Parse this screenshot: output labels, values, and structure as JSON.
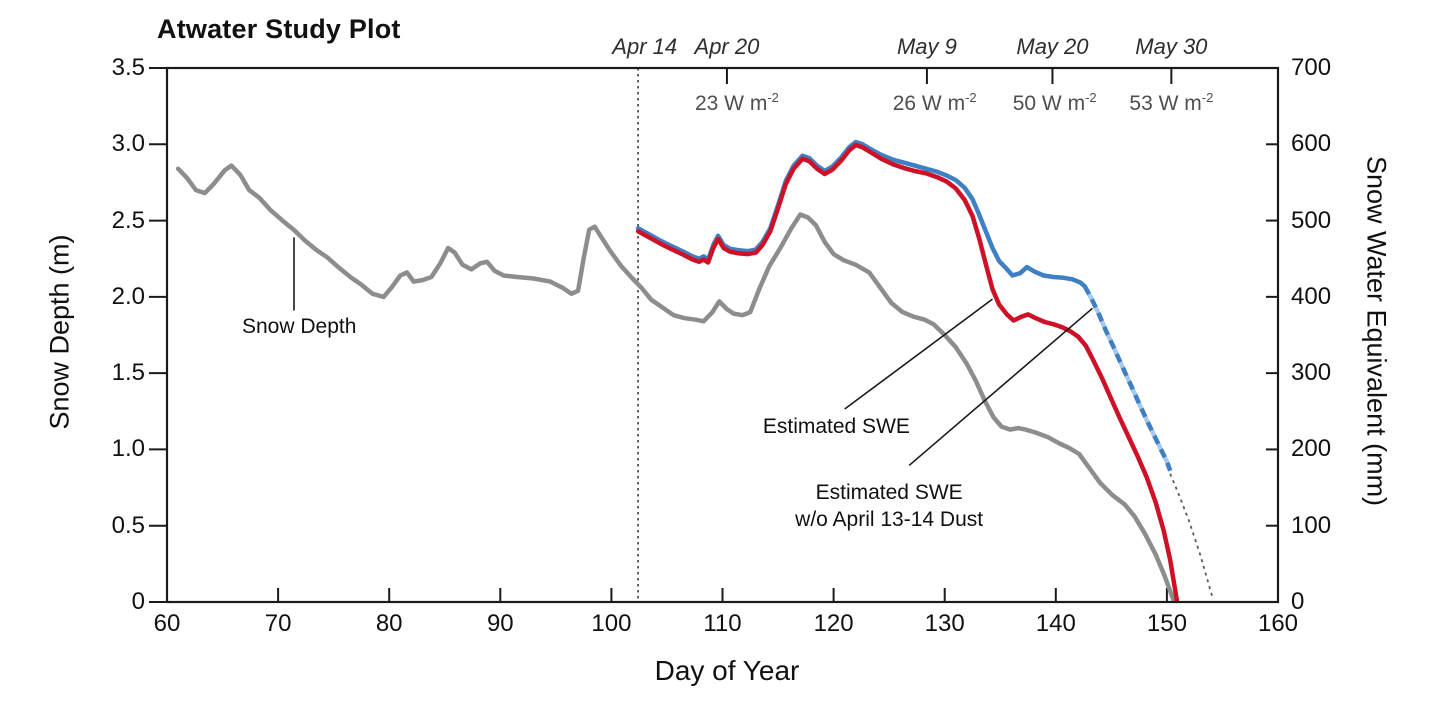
{
  "title": "Atwater Study Plot",
  "colors": {
    "snow_depth": "#8d8d8d",
    "swe": "#ce1126",
    "swe_no_dust": "#3f80c4",
    "swe_no_dust_light": "#a9c9e8",
    "axis": "#1a1a1a",
    "dotted_line": "#3a3a3a",
    "w_label": "#4f4f4f"
  },
  "axes": {
    "x": {
      "label": "Day of Year",
      "min": 60,
      "max": 160,
      "ticks": [
        60,
        70,
        80,
        90,
        100,
        110,
        120,
        130,
        140,
        150,
        160
      ]
    },
    "y_left": {
      "label": "Snow Depth (m)",
      "min": 0,
      "max": 3.5,
      "ticks": [
        {
          "v": 0,
          "t": "0"
        },
        {
          "v": 0.5,
          "t": "0.5"
        },
        {
          "v": 1.0,
          "t": "1.0"
        },
        {
          "v": 1.5,
          "t": "1.5"
        },
        {
          "v": 2.0,
          "t": "2.0"
        },
        {
          "v": 2.5,
          "t": "2.5"
        },
        {
          "v": 3.0,
          "t": "3.0"
        },
        {
          "v": 3.5,
          "t": "3.5"
        }
      ]
    },
    "y_right": {
      "label": "Snow Water Equivalent (mm)",
      "min": 0,
      "max": 700,
      "ticks": [
        0,
        100,
        200,
        300,
        400,
        500,
        600,
        700
      ]
    }
  },
  "top_annotations": {
    "dates": [
      {
        "label": "Apr 14",
        "day": 103.0,
        "tick": false
      },
      {
        "label": "Apr 20",
        "day": 110.4,
        "tick": true
      },
      {
        "label": "May 9",
        "day": 128.4,
        "tick": true
      },
      {
        "label": "May 20",
        "day": 139.7,
        "tick": true
      },
      {
        "label": "May 30",
        "day": 150.4,
        "tick": true
      }
    ],
    "radiative_forcing": [
      {
        "value": "23",
        "unit": "W m",
        "exp": "-2",
        "day": 111.3
      },
      {
        "value": "26",
        "unit": "W m",
        "exp": "-2",
        "day": 129.1
      },
      {
        "value": "50",
        "unit": "W m",
        "exp": "-2",
        "day": 139.9
      },
      {
        "value": "53",
        "unit": "W m",
        "exp": "-2",
        "day": 150.4
      }
    ]
  },
  "chart_data": {
    "type": "line",
    "title": "Atwater Study Plot",
    "xlabel": "Day of Year",
    "ylabel_left": "Snow Depth (m)",
    "ylabel_right": "Snow Water Equivalent (mm)",
    "xlim": [
      60,
      160
    ],
    "ylim_left": [
      0,
      3.5
    ],
    "ylim_right": [
      0,
      700
    ],
    "grid": false,
    "legend": "inline-annotations",
    "dust_event_line_day": 102.4,
    "series": [
      {
        "name": "Snow Depth",
        "axis": "left",
        "units": "m",
        "color": "#8d8d8d",
        "style": "solid",
        "points": [
          [
            61,
            2.84
          ],
          [
            61.8,
            2.78
          ],
          [
            62.6,
            2.7
          ],
          [
            63.4,
            2.68
          ],
          [
            64.2,
            2.74
          ],
          [
            65.2,
            2.83
          ],
          [
            65.8,
            2.86
          ],
          [
            66.6,
            2.8
          ],
          [
            67.4,
            2.7
          ],
          [
            68.3,
            2.65
          ],
          [
            69.3,
            2.57
          ],
          [
            70.4,
            2.5
          ],
          [
            71.4,
            2.44
          ],
          [
            72.4,
            2.37
          ],
          [
            73.4,
            2.31
          ],
          [
            74.4,
            2.26
          ],
          [
            75.5,
            2.19
          ],
          [
            76.5,
            2.13
          ],
          [
            77.5,
            2.08
          ],
          [
            78.5,
            2.02
          ],
          [
            79.5,
            2.0
          ],
          [
            80.2,
            2.06
          ],
          [
            81,
            2.14
          ],
          [
            81.6,
            2.16
          ],
          [
            82.2,
            2.1
          ],
          [
            83,
            2.11
          ],
          [
            83.8,
            2.13
          ],
          [
            84.6,
            2.22
          ],
          [
            85.3,
            2.32
          ],
          [
            85.9,
            2.29
          ],
          [
            86.6,
            2.21
          ],
          [
            87.4,
            2.18
          ],
          [
            88.2,
            2.22
          ],
          [
            88.8,
            2.23
          ],
          [
            89.5,
            2.17
          ],
          [
            90.3,
            2.14
          ],
          [
            91.5,
            2.13
          ],
          [
            93,
            2.12
          ],
          [
            94.5,
            2.1
          ],
          [
            95.6,
            2.06
          ],
          [
            96.4,
            2.02
          ],
          [
            97,
            2.04
          ],
          [
            97.5,
            2.25
          ],
          [
            98,
            2.44
          ],
          [
            98.5,
            2.46
          ],
          [
            99.2,
            2.38
          ],
          [
            99.9,
            2.3
          ],
          [
            100.9,
            2.2
          ],
          [
            101.9,
            2.12
          ],
          [
            102.7,
            2.06
          ],
          [
            103.6,
            1.98
          ],
          [
            104.6,
            1.93
          ],
          [
            105.6,
            1.88
          ],
          [
            106.6,
            1.86
          ],
          [
            107.6,
            1.85
          ],
          [
            108.3,
            1.84
          ],
          [
            109.1,
            1.9
          ],
          [
            109.7,
            1.97
          ],
          [
            110.4,
            1.92
          ],
          [
            111,
            1.89
          ],
          [
            111.8,
            1.88
          ],
          [
            112.5,
            1.9
          ],
          [
            113.3,
            2.05
          ],
          [
            114.2,
            2.2
          ],
          [
            115.2,
            2.32
          ],
          [
            116.2,
            2.45
          ],
          [
            117,
            2.54
          ],
          [
            117.7,
            2.52
          ],
          [
            118.4,
            2.47
          ],
          [
            119.2,
            2.36
          ],
          [
            120,
            2.28
          ],
          [
            120.9,
            2.24
          ],
          [
            122,
            2.21
          ],
          [
            123.2,
            2.16
          ],
          [
            124.2,
            2.06
          ],
          [
            125.2,
            1.96
          ],
          [
            126.2,
            1.9
          ],
          [
            127.2,
            1.87
          ],
          [
            128.2,
            1.85
          ],
          [
            129,
            1.82
          ],
          [
            130,
            1.75
          ],
          [
            131,
            1.67
          ],
          [
            132,
            1.56
          ],
          [
            132.8,
            1.45
          ],
          [
            133.6,
            1.32
          ],
          [
            134.4,
            1.21
          ],
          [
            135.1,
            1.15
          ],
          [
            135.9,
            1.13
          ],
          [
            136.6,
            1.14
          ],
          [
            137.3,
            1.13
          ],
          [
            138.2,
            1.11
          ],
          [
            139.3,
            1.08
          ],
          [
            140.3,
            1.04
          ],
          [
            141.2,
            1.01
          ],
          [
            142.1,
            0.97
          ],
          [
            143,
            0.88
          ],
          [
            144,
            0.78
          ],
          [
            145.1,
            0.7
          ],
          [
            146.2,
            0.64
          ],
          [
            147.1,
            0.56
          ],
          [
            148,
            0.45
          ],
          [
            149,
            0.31
          ],
          [
            149.8,
            0.17
          ],
          [
            150.6,
            0.01
          ]
        ]
      },
      {
        "name": "Estimated SWE w/o April 13-14 Dust",
        "axis": "right",
        "units": "mm",
        "color": "#3f80c4",
        "style": "solid-then-dashed",
        "points": [
          [
            102.4,
            490
          ],
          [
            103.4,
            482
          ],
          [
            104.5,
            473
          ],
          [
            105.5,
            466
          ],
          [
            106.5,
            459
          ],
          [
            107.3,
            453
          ],
          [
            107.9,
            450
          ],
          [
            108.3,
            453
          ],
          [
            108.7,
            449
          ],
          [
            109.2,
            469
          ],
          [
            109.6,
            480
          ],
          [
            110.1,
            468
          ],
          [
            110.7,
            463
          ],
          [
            111.5,
            461
          ],
          [
            112.3,
            460
          ],
          [
            113,
            462
          ],
          [
            113.6,
            472
          ],
          [
            114.3,
            490
          ],
          [
            115,
            520
          ],
          [
            115.7,
            552
          ],
          [
            116.4,
            572
          ],
          [
            117.2,
            585
          ],
          [
            117.8,
            582
          ],
          [
            118.5,
            572
          ],
          [
            119.2,
            565
          ],
          [
            119.9,
            571
          ],
          [
            120.7,
            583
          ],
          [
            121.4,
            596
          ],
          [
            122,
            603
          ],
          [
            122.6,
            600
          ],
          [
            123.4,
            593
          ],
          [
            124.3,
            586
          ],
          [
            125.3,
            580
          ],
          [
            126.3,
            576
          ],
          [
            127.3,
            572
          ],
          [
            128.3,
            568
          ],
          [
            129.3,
            564
          ],
          [
            130.2,
            559
          ],
          [
            131,
            553
          ],
          [
            131.8,
            543
          ],
          [
            132.5,
            528
          ],
          [
            133.1,
            508
          ],
          [
            133.7,
            486
          ],
          [
            134.3,
            464
          ],
          [
            134.9,
            447
          ],
          [
            135.5,
            438
          ],
          [
            136.1,
            428
          ],
          [
            136.8,
            431
          ],
          [
            137.4,
            439
          ],
          [
            138.1,
            433
          ],
          [
            138.9,
            428
          ],
          [
            139.8,
            426
          ],
          [
            140.7,
            425
          ],
          [
            141.5,
            423
          ],
          [
            142.2,
            419
          ],
          [
            142.6,
            414
          ]
        ],
        "points_dashed": [
          [
            142.6,
            414
          ],
          [
            143.2,
            398
          ],
          [
            143.8,
            380
          ],
          [
            144.5,
            356
          ],
          [
            145.2,
            334
          ],
          [
            146,
            308
          ],
          [
            146.8,
            283
          ],
          [
            147.6,
            257
          ],
          [
            148.4,
            232
          ],
          [
            149.2,
            208
          ],
          [
            150,
            184
          ],
          [
            150.3,
            172
          ]
        ],
        "points_dotted_extension": [
          [
            150.3,
            168
          ],
          [
            151.1,
            140
          ],
          [
            152,
            106
          ],
          [
            153,
            62
          ],
          [
            154.1,
            6
          ]
        ]
      },
      {
        "name": "Estimated SWE",
        "axis": "right",
        "units": "mm",
        "color": "#ce1126",
        "style": "solid",
        "points": [
          [
            102.4,
            486
          ],
          [
            103.4,
            478
          ],
          [
            104.5,
            469
          ],
          [
            105.5,
            462
          ],
          [
            106.5,
            455
          ],
          [
            107.3,
            449
          ],
          [
            107.9,
            446
          ],
          [
            108.3,
            449
          ],
          [
            108.7,
            445
          ],
          [
            109.2,
            465
          ],
          [
            109.6,
            476
          ],
          [
            110.1,
            464
          ],
          [
            110.7,
            459
          ],
          [
            111.5,
            457
          ],
          [
            112.3,
            456
          ],
          [
            113,
            458
          ],
          [
            113.6,
            468
          ],
          [
            114.3,
            486
          ],
          [
            115,
            516
          ],
          [
            115.7,
            548
          ],
          [
            116.4,
            568
          ],
          [
            117.2,
            581
          ],
          [
            117.8,
            578
          ],
          [
            118.5,
            568
          ],
          [
            119.2,
            561
          ],
          [
            119.9,
            567
          ],
          [
            120.7,
            579
          ],
          [
            121.4,
            592
          ],
          [
            122,
            599
          ],
          [
            122.6,
            596
          ],
          [
            123.4,
            589
          ],
          [
            124.3,
            581
          ],
          [
            125.3,
            574
          ],
          [
            126.3,
            569
          ],
          [
            127.3,
            565
          ],
          [
            128.3,
            562
          ],
          [
            129.3,
            557
          ],
          [
            130.2,
            551
          ],
          [
            131,
            542
          ],
          [
            131.8,
            527
          ],
          [
            132.5,
            506
          ],
          [
            133.1,
            477
          ],
          [
            133.7,
            443
          ],
          [
            134.3,
            410
          ],
          [
            134.9,
            390
          ],
          [
            135.6,
            377
          ],
          [
            136.2,
            369
          ],
          [
            136.9,
            374
          ],
          [
            137.5,
            377
          ],
          [
            138.2,
            372
          ],
          [
            139,
            367
          ],
          [
            139.8,
            364
          ],
          [
            140.6,
            360
          ],
          [
            141.3,
            355
          ],
          [
            142,
            348
          ],
          [
            142.7,
            336
          ],
          [
            143.4,
            316
          ],
          [
            144.2,
            292
          ],
          [
            145,
            266
          ],
          [
            145.8,
            240
          ],
          [
            146.6,
            215
          ],
          [
            147.4,
            190
          ],
          [
            148.2,
            163
          ],
          [
            149,
            130
          ],
          [
            149.7,
            94
          ],
          [
            150.3,
            55
          ],
          [
            150.9,
            2
          ]
        ]
      }
    ],
    "annotations": {
      "snow_depth": {
        "text": "Snow Depth",
        "label_day": 71.9,
        "label_m": 1.8,
        "pointer": {
          "day": 71.43,
          "m_from": 2.39,
          "m_to": 1.91
        }
      },
      "est_swe": {
        "text": "Estimated SWE",
        "label_day": 120.25,
        "label_mm": 229,
        "leader": [
          [
            121.0,
            253
          ],
          [
            134.3,
            397
          ]
        ]
      },
      "est_swe_no_dust": {
        "lines": [
          "Estimated SWE",
          "w/o April 13-14 Dust"
        ],
        "label_day": 125.0,
        "label_mm": 126,
        "leader": [
          [
            126.8,
            179
          ],
          [
            143.3,
            385
          ]
        ]
      }
    }
  }
}
